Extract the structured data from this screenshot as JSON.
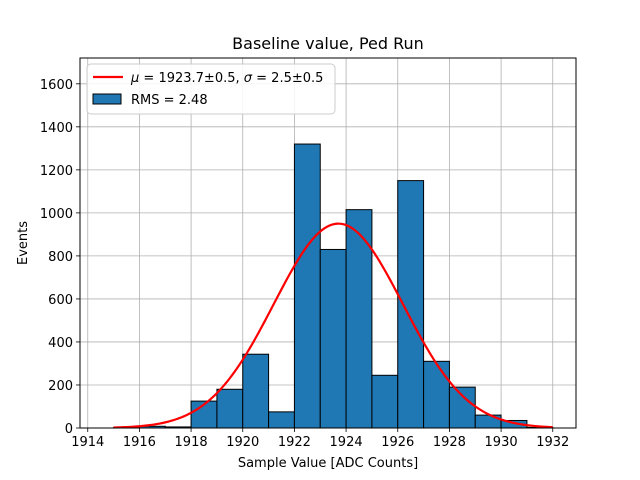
{
  "chart_data": {
    "type": "bar",
    "title": "Baseline value, Ped Run",
    "xlabel": "Sample Value [ADC Counts]",
    "ylabel": "Events",
    "xlim": [
      1913.7,
      1932.9
    ],
    "ylim": [
      0,
      1720
    ],
    "xticks": [
      1914,
      1916,
      1918,
      1920,
      1922,
      1924,
      1926,
      1928,
      1930,
      1932
    ],
    "yticks": [
      0,
      200,
      400,
      600,
      800,
      1000,
      1200,
      1400,
      1600
    ],
    "grid": true,
    "legend_position": "top-left",
    "bin_edges": [
      1915,
      1916,
      1917,
      1918,
      1919,
      1920,
      1921,
      1922,
      1923,
      1924,
      1925,
      1926,
      1927,
      1928,
      1929,
      1930,
      1931,
      1932
    ],
    "histogram": {
      "name": "RMS = 2.48",
      "color": "#1f77b4",
      "edgecolor": "#000000",
      "values": [
        2,
        8,
        5,
        125,
        180,
        343,
        75,
        1320,
        830,
        1015,
        245,
        1150,
        310,
        190,
        60,
        35,
        3
      ]
    },
    "fit": {
      "name": "μ = 1923.7±0.5, σ = 2.5±0.5",
      "label_parts": {
        "mu_sym": "μ",
        "mu_val": " = 1923.7±0.5, ",
        "sigma_sym": "σ",
        "sigma_val": " = 2.5±0.5"
      },
      "color": "#ff0000",
      "mu": 1923.7,
      "sigma": 2.5,
      "amplitude": 950,
      "x_range": [
        1915,
        1932
      ]
    }
  }
}
